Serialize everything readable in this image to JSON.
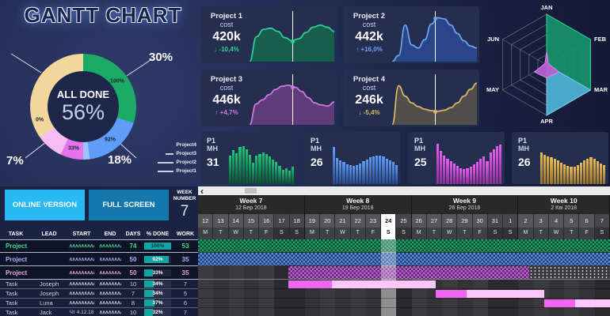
{
  "title": "GANTT CHART",
  "donut": {
    "center_label": "ALL DONE",
    "center_value": "56%",
    "segments": [
      {
        "name": "green",
        "pct": 30,
        "color": "#1cab67"
      },
      {
        "name": "blue",
        "pct": 18,
        "color": "#5f9df8"
      },
      {
        "name": "lightblue",
        "pct": 2,
        "color": "#9cc3fa"
      },
      {
        "name": "violet",
        "pct": 7,
        "color": "#e673ee"
      },
      {
        "name": "pink",
        "pct": 8,
        "color": "#f6bdf2"
      },
      {
        "name": "tan",
        "pct": 35,
        "color": "#f2d79c"
      }
    ],
    "inner_labels": [
      "100%",
      "92%",
      "33%",
      "0%"
    ],
    "callouts": [
      "30%",
      "18%",
      "7%"
    ],
    "legend": [
      "Project4",
      "Project3",
      "Project2",
      "Project1"
    ]
  },
  "cost_cards": [
    {
      "name": "Project 1",
      "sub": "cost",
      "value": "420k",
      "delta": "↓ -10,4%",
      "line": "#2bd397",
      "fill": "#16694d",
      "trend": [
        0,
        48,
        62,
        64,
        58,
        46,
        40,
        44,
        56,
        66,
        70,
        66,
        58
      ]
    },
    {
      "name": "Project 2",
      "sub": "cost",
      "value": "442k",
      "delta": "↑ +16,0%",
      "line": "#6ba3f5",
      "fill": "#2a4c96",
      "trend": [
        0,
        12,
        70,
        32,
        26,
        42,
        72,
        84,
        82,
        70,
        54,
        40,
        30,
        26
      ]
    },
    {
      "name": "Project 3",
      "sub": "cost",
      "value": "446k",
      "delta": "↑ +4,7%",
      "line": "#cf7ae0",
      "fill": "#6e3f85",
      "trend": [
        0,
        40,
        48,
        58,
        68,
        74,
        76,
        72,
        64,
        52,
        42,
        38,
        36,
        44
      ]
    },
    {
      "name": "Project 4",
      "sub": "cost",
      "value": "246k",
      "delta": "↓ -5,4%",
      "line": "#dcb964",
      "fill": "#5c564c",
      "trend": [
        0,
        75,
        55,
        42,
        35,
        30,
        27,
        26,
        28,
        33,
        42,
        55,
        68,
        80
      ]
    }
  ],
  "radar": {
    "labels": [
      "JAN",
      "FEB",
      "MAR",
      "APR",
      "MAY",
      "JUN"
    ],
    "max": 5,
    "series": [
      {
        "name": "green",
        "fill": "#17936b",
        "stroke": "#2fd695",
        "opacity": 0.92,
        "values": [
          5,
          5,
          5,
          5,
          0,
          0
        ]
      },
      {
        "name": "blue",
        "fill": "#53aede",
        "stroke": "#86cdf0",
        "opacity": 0.85,
        "values": [
          0,
          0,
          5,
          5,
          0,
          0
        ]
      },
      {
        "name": "purple",
        "fill": "#b85ed0",
        "stroke": "#d88cf0",
        "opacity": 0.95,
        "values": [
          1.3,
          0.2,
          1.4,
          1.3,
          1.4,
          0.2
        ]
      }
    ]
  },
  "mh_cards": [
    {
      "title": "P1",
      "sub": "MH",
      "value": "31",
      "color": "#1fc877",
      "dark": "#0b4f30",
      "bars": [
        60,
        72,
        65,
        78,
        80,
        74,
        62,
        45,
        60,
        64,
        67,
        63,
        58,
        52,
        46,
        38,
        30,
        34,
        28,
        36
      ]
    },
    {
      "title": "P1",
      "sub": "MH",
      "value": "26",
      "color": "#5f9df8",
      "dark": "#274a8a",
      "bars": [
        78,
        55,
        50,
        46,
        42,
        40,
        38,
        40,
        44,
        48,
        52,
        56,
        58,
        60,
        60,
        58,
        54,
        50,
        46,
        40
      ]
    },
    {
      "title": "P1",
      "sub": "MH",
      "value": "25",
      "color": "#e85ef2",
      "dark": "#8a2f96",
      "bars": [
        85,
        70,
        60,
        54,
        48,
        43,
        38,
        34,
        32,
        33,
        36,
        41,
        47,
        53,
        59,
        48,
        66,
        74,
        80,
        84
      ]
    },
    {
      "title": "P1",
      "sub": "MH",
      "value": "26",
      "color": "#e8bc55",
      "dark": "#96702a",
      "bars": [
        66,
        62,
        58,
        56,
        54,
        50,
        45,
        41,
        38,
        36,
        37,
        40,
        45,
        50,
        54,
        56,
        53,
        48,
        44,
        40
      ]
    }
  ],
  "panel": {
    "buttons": [
      {
        "label": "ONLINE VERSION"
      },
      {
        "label": "FULL SCREEN"
      }
    ],
    "week_label": "WEEK NUMBER",
    "week_value": "7",
    "headers": [
      "TASK",
      "LEAD",
      "START",
      "END",
      "DAYS",
      "% DONE",
      "WORK"
    ],
    "rows": [
      {
        "type": "project",
        "task": "Project",
        "lead": "",
        "days": "74",
        "done": "100%",
        "done_pct": 100,
        "work": "53",
        "color": "#3fd989"
      },
      {
        "type": "project",
        "task": "Project",
        "lead": "",
        "days": "50",
        "done": "92%",
        "done_pct": 92,
        "work": "35",
        "color": "#a9b6f2"
      },
      {
        "type": "project",
        "task": "Project",
        "lead": "",
        "days": "50",
        "done": "33%",
        "done_pct": 33,
        "work": "35",
        "color": "#eda4dd"
      },
      {
        "type": "task",
        "task": "Task",
        "lead": "Joseph",
        "days": "10",
        "done": "34%",
        "done_pct": 34,
        "work": "7",
        "color": "#c9cdd8"
      },
      {
        "type": "task",
        "task": "Task",
        "lead": "Joseph",
        "days": "7",
        "done": "34%",
        "done_pct": 34,
        "work": "5",
        "color": "#c9cdd8"
      },
      {
        "type": "task",
        "task": "Task",
        "lead": "Luna",
        "days": "8",
        "done": "37%",
        "done_pct": 37,
        "work": "6",
        "color": "#c9cdd8"
      },
      {
        "type": "task",
        "task": "Task",
        "lead": "Jack",
        "start_text": "Чт 4.12.18",
        "days": "10",
        "done": "32%",
        "done_pct": 32,
        "work": "7",
        "color": "#c9cdd8"
      }
    ]
  },
  "gantt": {
    "back_label": "‹",
    "total_days": 27,
    "today_index": 12,
    "weeks": [
      {
        "name": "Week 7",
        "date": "12 Бер 2018",
        "days": [
          [
            "12",
            "M"
          ],
          [
            "13",
            "T"
          ],
          [
            "14",
            "W"
          ],
          [
            "15",
            "T"
          ],
          [
            "16",
            "F"
          ],
          [
            "17",
            "S"
          ],
          [
            "18",
            "S"
          ]
        ]
      },
      {
        "name": "Week 8",
        "date": "19 Бер 2018",
        "days": [
          [
            "19",
            "M"
          ],
          [
            "20",
            "T"
          ],
          [
            "21",
            "W"
          ],
          [
            "22",
            "T"
          ],
          [
            "23",
            "F"
          ],
          [
            "24",
            "S"
          ],
          [
            "25",
            "S"
          ]
        ],
        "today": "24"
      },
      {
        "name": "Week 9",
        "date": "26 Бер 2018",
        "days": [
          [
            "26",
            "M"
          ],
          [
            "27",
            "T"
          ],
          [
            "28",
            "W"
          ],
          [
            "29",
            "T"
          ],
          [
            "30",
            "F"
          ],
          [
            "31",
            "S"
          ],
          [
            "1",
            "S"
          ]
        ]
      },
      {
        "name": "Week 10",
        "date": "2 Кві 2018",
        "days": [
          [
            "2",
            "M"
          ],
          [
            "3",
            "T"
          ],
          [
            "4",
            "W"
          ],
          [
            "5",
            "T"
          ],
          [
            "6",
            "F"
          ],
          [
            "7",
            "S"
          ]
        ]
      }
    ],
    "bars": [
      {
        "row": 0,
        "kind": "hatch",
        "color": "#1fa167",
        "dark": "#0a4a2e",
        "from": 0,
        "to": 27
      },
      {
        "row": 1,
        "kind": "hatch",
        "color": "#5c8fe0",
        "dark": "#1e3a6e",
        "from": 0,
        "to": 27
      },
      {
        "row": 2,
        "kind": "hatch",
        "color": "#c063d6",
        "dark": "#5a2868",
        "from": 5.9,
        "to": 21.7
      },
      {
        "row": 2,
        "kind": "dots",
        "from": 21.7,
        "to": 27
      },
      {
        "row": 3,
        "kind": "solid",
        "color": "#ee66f2",
        "from": 5.9,
        "to": 8.8
      },
      {
        "row": 3,
        "kind": "solid",
        "color": "#fac7fa",
        "from": 8.8,
        "to": 15.6
      },
      {
        "row": 4,
        "kind": "solid",
        "color": "#ee66f2",
        "from": 15.6,
        "to": 17.6
      },
      {
        "row": 4,
        "kind": "solid",
        "color": "#fac7fa",
        "from": 17.6,
        "to": 22.7
      },
      {
        "row": 5,
        "kind": "solid",
        "color": "#ee66f2",
        "from": 22.7,
        "to": 24.7
      },
      {
        "row": 5,
        "kind": "solid",
        "color": "#fac7fa",
        "from": 24.7,
        "to": 27
      }
    ]
  }
}
